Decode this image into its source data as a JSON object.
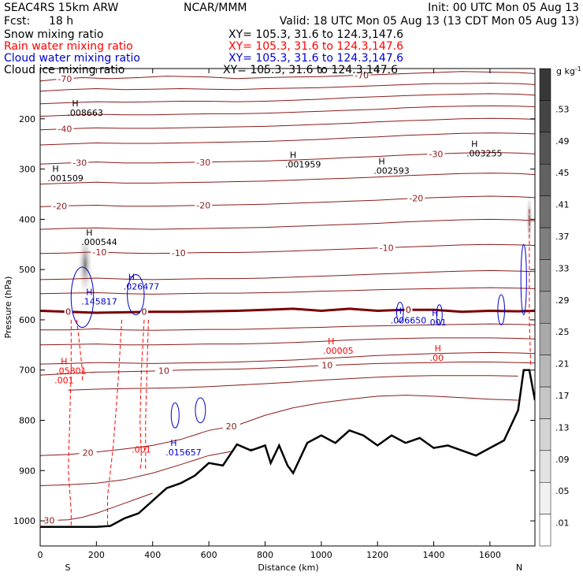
{
  "header": {
    "model": "SEAC4RS 15km ARW",
    "org": "NCAR/MMM",
    "init": "Init: 00 UTC Mon 05 Aug 13",
    "fcst_label": "Fcst:",
    "fcst_value": "18 h",
    "valid": "Valid: 18 UTC Mon 05 Aug 13 (13 CDT Mon 05 Aug 13)",
    "fields": [
      {
        "name": "Snow mixing ratio",
        "xy": "XY= 105.3, 31.6 to 124.3,147.6",
        "color": "#000000"
      },
      {
        "name": "Rain water mixing ratio",
        "xy": "XY= 105.3, 31.6 to 124.3,147.6",
        "color": "#ff0000"
      },
      {
        "name": "Cloud water mixing ratio",
        "xy": "XY= 105.3, 31.6 to 124.3,147.6",
        "color": "#0000cc"
      },
      {
        "name": "Cloud ice mixing ratio",
        "xy": "XY= 105.3, 31.6 to 124.3,147.6",
        "color": "#000000"
      }
    ]
  },
  "chart_data": {
    "type": "contour cross-section",
    "xlabel": "Distance (km)",
    "ylabel": "Pressure (hPa)",
    "xlim": [
      0,
      1760
    ],
    "ylim": [
      1050,
      100
    ],
    "x_ticks": [
      0,
      200,
      400,
      600,
      800,
      1000,
      1200,
      1400,
      1600
    ],
    "y_ticks": [
      200,
      300,
      400,
      500,
      600,
      700,
      800,
      900,
      1000
    ],
    "end_labels": {
      "left": "S",
      "right": "N"
    },
    "colorbar": {
      "unit": "g kg",
      "unit_exp": "-1",
      "levels": [
        0.01,
        0.05,
        0.09,
        0.13,
        0.17,
        0.21,
        0.25,
        0.29,
        0.33,
        0.37,
        0.41,
        0.45,
        0.49,
        0.53
      ],
      "labels": [
        ".01",
        ".05",
        ".09",
        ".13",
        ".17",
        ".21",
        ".25",
        ".29",
        ".33",
        ".37",
        ".41",
        ".45",
        ".49",
        ".53"
      ]
    },
    "terrain_pressure": {
      "x": [
        0,
        100,
        200,
        250,
        300,
        350,
        400,
        450,
        500,
        550,
        600,
        650,
        700,
        750,
        800,
        820,
        850,
        880,
        900,
        950,
        1000,
        1050,
        1100,
        1150,
        1200,
        1250,
        1300,
        1350,
        1400,
        1450,
        1500,
        1550,
        1600,
        1650,
        1700,
        1720,
        1740,
        1760
      ],
      "p": [
        1012,
        1012,
        1012,
        1010,
        995,
        985,
        960,
        935,
        925,
        910,
        885,
        890,
        848,
        860,
        850,
        885,
        850,
        890,
        905,
        845,
        830,
        845,
        820,
        830,
        850,
        830,
        845,
        835,
        855,
        850,
        860,
        870,
        855,
        840,
        780,
        700,
        700,
        760
      ]
    },
    "temperature_contours": [
      {
        "label": "-70",
        "x": [
          0,
          50,
          150,
          250,
          350,
          450,
          600,
          700,
          800,
          900,
          1000,
          1100,
          1200,
          1300,
          1400,
          1500,
          1600,
          1700,
          1760
        ],
        "p": [
          125,
          122,
          118,
          120,
          118,
          115,
          117,
          120,
          118,
          117,
          116,
          114,
          112,
          110,
          108,
          106,
          107,
          108,
          110
        ]
      },
      {
        "label": "",
        "x": [
          0,
          100,
          200,
          300,
          400,
          500,
          600,
          700,
          800,
          900,
          1000,
          1100,
          1200,
          1300,
          1400,
          1500,
          1600,
          1700,
          1760
        ],
        "p": [
          145,
          142,
          140,
          142,
          141,
          140,
          141,
          142,
          140,
          139,
          138,
          136,
          134,
          132,
          130,
          130,
          129,
          130,
          132
        ]
      },
      {
        "label": "",
        "x": [
          0,
          100,
          200,
          300,
          400,
          500,
          600,
          700,
          800,
          900,
          1000,
          1100,
          1200,
          1300,
          1400,
          1500,
          1600,
          1700,
          1760
        ],
        "p": [
          170,
          168,
          166,
          167,
          166,
          165,
          165,
          166,
          165,
          163,
          161,
          158,
          156,
          154,
          152,
          151,
          150,
          151,
          153
        ]
      },
      {
        "label": "",
        "x": [
          0,
          100,
          200,
          300,
          400,
          500,
          600,
          700,
          800,
          900,
          1000,
          1100,
          1200,
          1300,
          1400,
          1500,
          1600,
          1700,
          1760
        ],
        "p": [
          195,
          193,
          191,
          192,
          192,
          191,
          190,
          190,
          189,
          187,
          185,
          183,
          181,
          178,
          176,
          175,
          174,
          175,
          176
        ]
      },
      {
        "label": "-40",
        "x": [
          0,
          100,
          200,
          300,
          400,
          500,
          600,
          700,
          800,
          900,
          1000,
          1100,
          1200,
          1300,
          1400,
          1500,
          1600,
          1700,
          1760
        ],
        "p": [
          222,
          220,
          218,
          219,
          219,
          218,
          217,
          216,
          215,
          213,
          211,
          209,
          206,
          204,
          202,
          200,
          199,
          200,
          201
        ]
      },
      {
        "label": "",
        "x": [
          0,
          100,
          200,
          300,
          400,
          500,
          600,
          700,
          800,
          900,
          1000,
          1100,
          1200,
          1300,
          1400,
          1500,
          1600,
          1700,
          1760
        ],
        "p": [
          252,
          250,
          248,
          249,
          249,
          248,
          247,
          246,
          245,
          243,
          241,
          238,
          236,
          233,
          231,
          229,
          228,
          229,
          230
        ]
      },
      {
        "label": "-30",
        "x": [
          0,
          100,
          200,
          300,
          400,
          500,
          600,
          700,
          800,
          900,
          1000,
          1100,
          1200,
          1300,
          1400,
          1500,
          1600,
          1700,
          1760
        ],
        "p": [
          290,
          288,
          286,
          288,
          288,
          287,
          286,
          285,
          284,
          282,
          280,
          277,
          275,
          272,
          270,
          268,
          267,
          268,
          270
        ]
      },
      {
        "label": "",
        "x": [
          0,
          100,
          200,
          300,
          400,
          500,
          600,
          700,
          800,
          900,
          1000,
          1100,
          1200,
          1300,
          1400,
          1500,
          1600,
          1700,
          1760
        ],
        "p": [
          330,
          328,
          326,
          328,
          328,
          327,
          326,
          325,
          324,
          322,
          320,
          318,
          316,
          313,
          311,
          309,
          308,
          309,
          311
        ]
      },
      {
        "label": "-20",
        "x": [
          0,
          100,
          200,
          300,
          400,
          500,
          600,
          700,
          800,
          900,
          1000,
          1100,
          1200,
          1300,
          1400,
          1500,
          1600,
          1700,
          1760
        ],
        "p": [
          375,
          373,
          372,
          374,
          374,
          373,
          372,
          371,
          370,
          368,
          366,
          364,
          362,
          359,
          357,
          355,
          354,
          355,
          357
        ]
      },
      {
        "label": "",
        "x": [
          0,
          100,
          200,
          300,
          400,
          500,
          600,
          700,
          800,
          900,
          1000,
          1100,
          1200,
          1300,
          1400,
          1500,
          1600,
          1700,
          1760
        ],
        "p": [
          420,
          418,
          417,
          419,
          420,
          419,
          418,
          417,
          416,
          414,
          412,
          410,
          408,
          405,
          403,
          401,
          400,
          401,
          403
        ]
      },
      {
        "label": "-10",
        "x": [
          0,
          100,
          200,
          300,
          400,
          500,
          600,
          700,
          800,
          900,
          1000,
          1100,
          1200,
          1300,
          1400,
          1500,
          1600,
          1700,
          1760
        ],
        "p": [
          468,
          467,
          465,
          467,
          468,
          467,
          466,
          466,
          465,
          463,
          461,
          459,
          457,
          455,
          453,
          451,
          450,
          451,
          452
        ]
      },
      {
        "label": "",
        "x": [
          0,
          100,
          200,
          300,
          400,
          500,
          600,
          700,
          800,
          900,
          1000,
          1100,
          1200,
          1300,
          1400,
          1500,
          1600,
          1700,
          1760
        ],
        "p": [
          520,
          519,
          517,
          519,
          520,
          519,
          518,
          518,
          517,
          515,
          513,
          511,
          509,
          507,
          505,
          503,
          502,
          503,
          504
        ]
      },
      {
        "label": "",
        "x": [
          0,
          100,
          200,
          300,
          400,
          500,
          600,
          700,
          800,
          900,
          1000,
          1100,
          1200,
          1300,
          1400,
          1500,
          1600,
          1700,
          1760
        ],
        "p": [
          548,
          547,
          546,
          548,
          549,
          548,
          547,
          547,
          546,
          545,
          543,
          542,
          540,
          539,
          538,
          537,
          536,
          537,
          538
        ]
      },
      {
        "label": "",
        "x": [
          0,
          100,
          200,
          300,
          400,
          500,
          600,
          700,
          800,
          900,
          1000,
          1100,
          1200,
          1300,
          1400,
          1500,
          1600,
          1700,
          1760
        ],
        "p": [
          620,
          620,
          618,
          620,
          621,
          620,
          619,
          619,
          618,
          616,
          615,
          613,
          612,
          611,
          610,
          609,
          608,
          609,
          610
        ]
      },
      {
        "label": "",
        "x": [
          0,
          100,
          200,
          300,
          400,
          500,
          600,
          700,
          800,
          900,
          1000,
          1100,
          1200,
          1300,
          1400,
          1500,
          1600,
          1700,
          1760
        ],
        "p": [
          650,
          649,
          648,
          650,
          650,
          649,
          648,
          648,
          647,
          645,
          643,
          640,
          638,
          637,
          636,
          636,
          636,
          637,
          638
        ]
      },
      {
        "label": "",
        "x": [
          0,
          100,
          200,
          300,
          400,
          500,
          600,
          700,
          800,
          900,
          1000,
          1100,
          1200,
          1300,
          1400,
          1500,
          1600,
          1700,
          1760
        ],
        "p": [
          688,
          687,
          685,
          686,
          687,
          686,
          685,
          684,
          682,
          680,
          677,
          674,
          671,
          669,
          667,
          666,
          665,
          666,
          667
        ]
      },
      {
        "label": "10",
        "x": [
          0,
          100,
          200,
          300,
          400,
          500,
          600,
          700,
          800,
          900,
          1000,
          1100,
          1200,
          1300,
          1400,
          1500,
          1600,
          1700,
          1760
        ],
        "p": [
          710,
          707,
          704,
          703,
          702,
          700,
          699,
          698,
          696,
          694,
          691,
          689,
          687,
          686,
          685,
          684,
          684,
          685,
          686
        ]
      },
      {
        "label": "",
        "x": [
          100,
          200,
          300,
          400,
          500,
          600,
          700,
          800,
          900,
          1000,
          1100,
          1200,
          1300,
          1400,
          1500,
          1600,
          1700
        ],
        "p": [
          740,
          738,
          737,
          736,
          735,
          733,
          730,
          727,
          724,
          720,
          717,
          714,
          712,
          711,
          711,
          711,
          712
        ]
      },
      {
        "label": "20",
        "x": [
          0,
          100,
          200,
          300,
          400,
          500,
          600,
          700,
          800,
          900,
          1000,
          1100,
          1200,
          1300,
          1400,
          1500,
          1600,
          1700
        ],
        "p": [
          870,
          868,
          863,
          857,
          850,
          838,
          820,
          810,
          790,
          775,
          765,
          758,
          752,
          750,
          752,
          755,
          758,
          760
        ]
      },
      {
        "label": "",
        "x": [
          0,
          100,
          200,
          300,
          400,
          500,
          600,
          700,
          800
        ],
        "p": [
          930,
          928,
          925,
          918,
          905,
          888,
          870,
          860,
          855
        ]
      },
      {
        "label": "30",
        "x": [
          0,
          100,
          150,
          200,
          250,
          300,
          350,
          400
        ],
        "p": [
          1000,
          998,
          993,
          985,
          975,
          965,
          955,
          945
        ]
      }
    ],
    "freezing_level": {
      "label": "0",
      "x": [
        0,
        100,
        200,
        300,
        400,
        500,
        600,
        700,
        800,
        900,
        1000,
        1100,
        1200,
        1300,
        1400,
        1500,
        1600,
        1700,
        1760
      ],
      "p": [
        582,
        584,
        586,
        585,
        584,
        584,
        583,
        582,
        580,
        578,
        582,
        578,
        582,
        580,
        580,
        584,
        582,
        583,
        582
      ]
    },
    "highs": [
      {
        "mark": "H",
        "value": ".008663",
        "x": 130,
        "p": 185,
        "color": "#000000"
      },
      {
        "mark": "H",
        "value": ".001509",
        "x": 60,
        "p": 315,
        "color": "#000000"
      },
      {
        "mark": "H",
        "value": ".000544",
        "x": 180,
        "p": 442,
        "color": "#000000"
      },
      {
        "mark": "H",
        "value": ".001959",
        "x": 905,
        "p": 287,
        "color": "#000000"
      },
      {
        "mark": "H",
        "value": ".002593",
        "x": 1220,
        "p": 300,
        "color": "#000000"
      },
      {
        "mark": "H",
        "value": ".003255",
        "x": 1550,
        "p": 265,
        "color": "#000000"
      },
      {
        "mark": "H",
        "value": ".026477",
        "x": 330,
        "p": 530,
        "color": "#0000cc"
      },
      {
        "mark": "H",
        "value": ".145817",
        "x": 180,
        "p": 560,
        "color": "#0000cc"
      },
      {
        "mark": "H",
        "value": ".006650",
        "x": 1280,
        "p": 598,
        "color": "#0000cc"
      },
      {
        "mark": "H",
        "value": ".001",
        "x": 1410,
        "p": 602,
        "color": "#0000cc"
      },
      {
        "mark": "H",
        "value": ".015657",
        "x": 480,
        "p": 860,
        "color": "#0000cc"
      },
      {
        "mark": "H",
        "value": ".00005",
        "x": 1040,
        "p": 658,
        "color": "#ff0000"
      },
      {
        "mark": "H",
        "value": ".00",
        "x": 1420,
        "p": 672,
        "color": "#ff0000"
      },
      {
        "mark": "H",
        "value": ".05801",
        "x": 90,
        "p": 698,
        "color": "#ff0000"
      }
    ],
    "rain_labels": [
      {
        "value": ".001",
        "x": 85,
        "p": 720
      },
      {
        "value": ".001",
        "x": 360,
        "p": 858
      }
    ],
    "snow_shading": [
      {
        "x": 160,
        "p_top": 420,
        "p_bot": 560,
        "width_km": 55,
        "peak": 0.41
      },
      {
        "x": 1740,
        "p_top": 340,
        "p_bot": 460,
        "width_km": 25,
        "peak": 0.37
      }
    ]
  }
}
